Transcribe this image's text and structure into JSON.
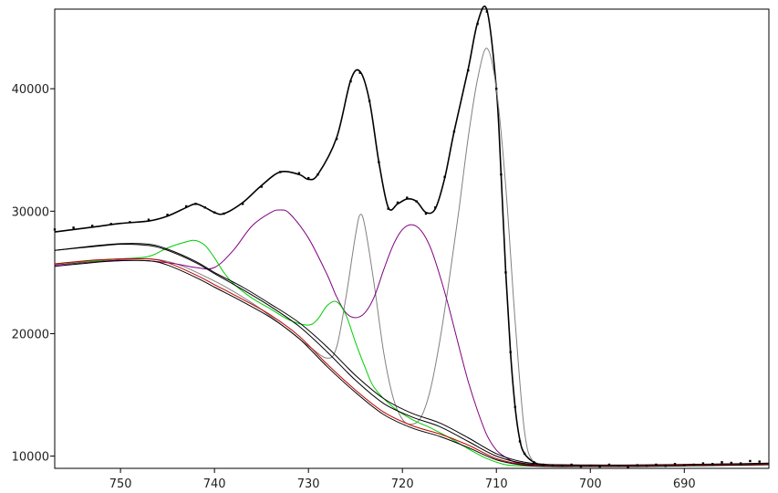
{
  "chart_data": {
    "type": "line",
    "title": "",
    "xlabel": "",
    "ylabel": "",
    "x_reversed": true,
    "xlim": [
      757,
      681
    ],
    "ylim": [
      9000,
      46500
    ],
    "grid": false,
    "x_ticks": [
      750,
      740,
      730,
      720,
      710,
      700,
      690
    ],
    "x_tick_labels": [
      "750",
      "740",
      "730",
      "720",
      "710",
      "700",
      "690"
    ],
    "y_ticks": [
      10000,
      20000,
      30000,
      40000
    ],
    "y_tick_labels": [
      "10000",
      "20000",
      "30000",
      "40000"
    ],
    "data_points": {
      "x": [
        757,
        755,
        753,
        751,
        749,
        747,
        745,
        743,
        742,
        741,
        740,
        739,
        737,
        735,
        733,
        731,
        730,
        729,
        727,
        725.5,
        724.5,
        723.5,
        722.5,
        721.5,
        720.5,
        719.5,
        718.5,
        717.5,
        716.5,
        715.5,
        714.5,
        713,
        712,
        711,
        710,
        709.5,
        709,
        708.5,
        708,
        707.5,
        707,
        706,
        705,
        704,
        703,
        702,
        701,
        700,
        699,
        698,
        697,
        696,
        695,
        694,
        693,
        692,
        691,
        690,
        689,
        688,
        687,
        686,
        685,
        684,
        683,
        682
      ],
      "y": [
        28500,
        28650,
        28800,
        28950,
        29100,
        29300,
        29700,
        30400,
        30600,
        30300,
        29900,
        29800,
        30600,
        32000,
        33200,
        33100,
        32700,
        33000,
        35900,
        40600,
        41300,
        39000,
        34000,
        30200,
        30700,
        31100,
        30800,
        29800,
        30300,
        32800,
        36500,
        41500,
        45300,
        46300,
        40000,
        33000,
        25000,
        18500,
        14000,
        11200,
        10200,
        9500,
        9300,
        9250,
        9200,
        9300,
        9150,
        9200,
        9150,
        9300,
        9200,
        9100,
        9250,
        9200,
        9300,
        9200,
        9350,
        9250,
        9300,
        9400,
        9350,
        9500,
        9450,
        9400,
        9600,
        9550
      ]
    },
    "series": [
      {
        "role": "fit envelope",
        "color": "#000000",
        "x": [
          757,
          753,
          750,
          747,
          745,
          743,
          742,
          741,
          740,
          739,
          737,
          735,
          733,
          731,
          730,
          729,
          727,
          725.5,
          724.5,
          723.5,
          722.5,
          721.5,
          720.5,
          719.5,
          718.5,
          717.5,
          716.5,
          715.5,
          714.5,
          713,
          712,
          711,
          710,
          709.5,
          709,
          708.5,
          708,
          707.5,
          707,
          706,
          705,
          703,
          700,
          695,
          690,
          685,
          681
        ],
        "y": [
          28300,
          28700,
          29000,
          29200,
          29600,
          30300,
          30600,
          30300,
          29900,
          29800,
          30700,
          32100,
          33200,
          33000,
          32600,
          33000,
          36000,
          40700,
          41400,
          39000,
          34000,
          30300,
          30600,
          31000,
          30800,
          29900,
          30200,
          32700,
          36500,
          41600,
          45400,
          46400,
          40000,
          33000,
          25000,
          18500,
          14000,
          11300,
          10200,
          9500,
          9300,
          9250,
          9250,
          9250,
          9300,
          9350,
          9400
        ]
      },
      {
        "role": "component peak",
        "color": "#808080",
        "x": [
          757,
          750,
          745,
          740,
          736,
          733,
          730,
          728,
          727,
          726,
          725,
          724.5,
          724,
          723,
          722,
          721,
          720,
          719,
          718,
          717,
          716,
          715,
          714,
          713,
          712,
          711,
          710,
          709,
          708,
          707,
          706,
          704,
          700,
          690,
          681
        ],
        "y": [
          25700,
          26100,
          25900,
          24300,
          22500,
          20800,
          19000,
          18000,
          18900,
          23000,
          28000,
          29700,
          28800,
          24000,
          18500,
          14800,
          13000,
          12600,
          13200,
          15500,
          19500,
          24500,
          30000,
          36000,
          40800,
          43300,
          40000,
          32000,
          21000,
          12000,
          9500,
          9200,
          9200,
          9250,
          9300
        ]
      },
      {
        "role": "component peak",
        "color": "#800080",
        "x": [
          757,
          750,
          745,
          742,
          740,
          738,
          736,
          734,
          733,
          732,
          730,
          728,
          727,
          726,
          725,
          724,
          723,
          722,
          721,
          720,
          719,
          718,
          717,
          716,
          715,
          714,
          713,
          712,
          711,
          710,
          709,
          708,
          707,
          706,
          705,
          704,
          700,
          690,
          681
        ],
        "y": [
          25600,
          26000,
          25800,
          25400,
          25400,
          26800,
          28800,
          29900,
          30100,
          29800,
          27800,
          24800,
          23000,
          21700,
          21300,
          21700,
          23000,
          25200,
          27200,
          28500,
          28900,
          28400,
          27000,
          24700,
          22000,
          19000,
          16100,
          13700,
          11700,
          10500,
          9900,
          9500,
          9350,
          9250,
          9200,
          9200,
          9200,
          9250,
          9300
        ]
      },
      {
        "role": "component peak",
        "color": "#00cc00",
        "x": [
          757,
          750,
          747,
          745,
          743,
          742,
          741,
          740,
          739,
          738,
          736,
          734,
          732,
          730,
          729,
          728,
          727,
          726,
          725,
          724,
          723,
          721,
          719,
          717,
          715,
          713,
          711,
          709,
          707,
          705,
          700,
          690,
          681
        ],
        "y": [
          25700,
          26100,
          26300,
          27000,
          27500,
          27600,
          27200,
          26200,
          25000,
          24100,
          22900,
          22000,
          21100,
          20700,
          21200,
          22300,
          22600,
          21500,
          19300,
          17300,
          15600,
          14000,
          13000,
          12300,
          11500,
          10600,
          9800,
          9300,
          9200,
          9200,
          9200,
          9250,
          9300
        ]
      },
      {
        "role": "background",
        "color": "#000000",
        "x": [
          757,
          753,
          750,
          747,
          745,
          742,
          740,
          737,
          734,
          731,
          728,
          725,
          722,
          719,
          716,
          713,
          710,
          707,
          704,
          700,
          695,
          690,
          685,
          681
        ],
        "y": [
          26800,
          27100,
          27300,
          27200,
          26800,
          25800,
          24900,
          23600,
          22200,
          20600,
          18500,
          16200,
          14300,
          13200,
          12400,
          11200,
          10000,
          9400,
          9300,
          9250,
          9250,
          9300,
          9350,
          9400
        ]
      },
      {
        "role": "background",
        "color": "#000000",
        "x": [
          757,
          753,
          750,
          747,
          745,
          742,
          740,
          737,
          734,
          731,
          728,
          725,
          722,
          719,
          716,
          713,
          710,
          707,
          704,
          700,
          695,
          690,
          685,
          681
        ],
        "y": [
          26800,
          27150,
          27350,
          27300,
          26900,
          25900,
          25000,
          23800,
          22400,
          20900,
          18900,
          16600,
          14700,
          13500,
          12700,
          11500,
          10200,
          9500,
          9300,
          9250,
          9250,
          9300,
          9350,
          9400
        ]
      },
      {
        "role": "background",
        "color": "#c00000",
        "x": [
          757,
          753,
          750,
          747,
          745,
          742,
          740,
          737,
          734,
          731,
          728,
          725,
          722,
          719,
          716,
          713,
          710,
          707,
          704,
          700,
          695,
          690,
          685,
          681
        ],
        "y": [
          25700,
          26000,
          26100,
          26100,
          25800,
          24800,
          24000,
          22800,
          21500,
          19800,
          17500,
          15400,
          13600,
          12500,
          11800,
          10900,
          9800,
          9300,
          9200,
          9200,
          9200,
          9250,
          9300,
          9350
        ]
      },
      {
        "role": "background",
        "color": "#000000",
        "x": [
          757,
          753,
          750,
          747,
          745,
          742,
          740,
          737,
          734,
          731,
          728,
          725,
          722,
          719,
          716,
          713,
          710,
          707,
          704,
          700,
          695,
          690,
          685,
          681
        ],
        "y": [
          25500,
          25800,
          25950,
          25950,
          25600,
          24600,
          23800,
          22600,
          21300,
          19600,
          17300,
          15200,
          13400,
          12300,
          11600,
          10700,
          9700,
          9250,
          9150,
          9150,
          9150,
          9200,
          9250,
          9300
        ]
      }
    ]
  }
}
